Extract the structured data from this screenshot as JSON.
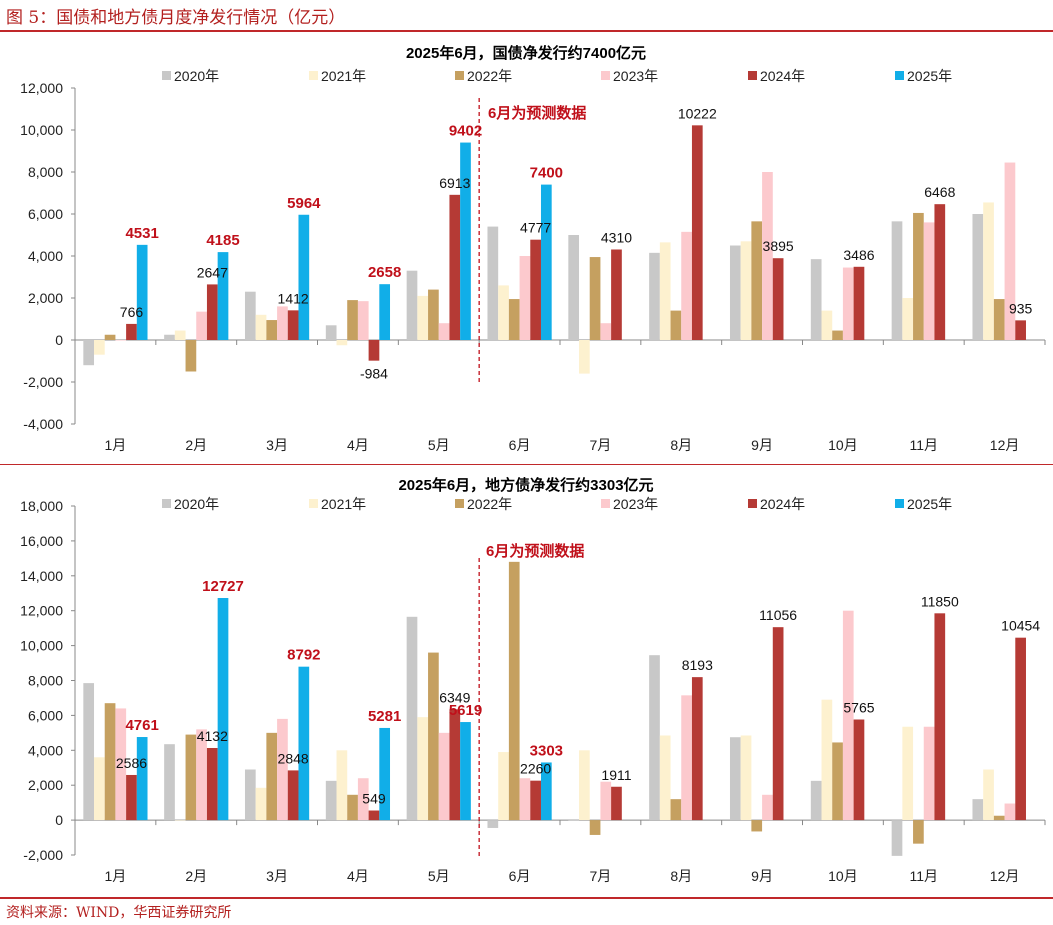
{
  "figure": {
    "title": "图 5：国债和地方债月度净发行情况（亿元）",
    "source": "资料来源：WIND，华西证券研究所"
  },
  "colors": {
    "2020年": "#c8c8c8",
    "2021年": "#fdf1cf",
    "2022年": "#c5a060",
    "2023年": "#fcc9cd",
    "2024年": "#b53a35",
    "2025年": "#11aee8",
    "highlight": "#c0101a",
    "dashed": "#c0101a"
  },
  "chart_data": [
    {
      "type": "bar",
      "title": "2025年6月，国债净发行约7400亿元",
      "annotation": "6月为预测数据",
      "categories": [
        "1月",
        "2月",
        "3月",
        "4月",
        "5月",
        "6月",
        "7月",
        "8月",
        "9月",
        "10月",
        "11月",
        "12月"
      ],
      "ylim": [
        -4000,
        12000
      ],
      "yticks": [
        -4000,
        -2000,
        0,
        2000,
        4000,
        6000,
        8000,
        10000,
        12000
      ],
      "ytick_labels": [
        "-4,000",
        "-2,000",
        "0",
        "2,000",
        "4,000",
        "6,000",
        "8,000",
        "10,000",
        "12,000"
      ],
      "legend_position": "top",
      "series": [
        {
          "name": "2020年",
          "values": [
            -1200,
            250,
            2300,
            700,
            3300,
            5400,
            5000,
            4150,
            4500,
            3850,
            5650,
            6000
          ]
        },
        {
          "name": "2021年",
          "values": [
            -700,
            450,
            1200,
            -250,
            2100,
            2600,
            -1600,
            4650,
            4700,
            1400,
            2000,
            6550
          ]
        },
        {
          "name": "2022年",
          "values": [
            250,
            -1500,
            950,
            1900,
            2400,
            1950,
            3950,
            1400,
            5650,
            450,
            6050,
            1950
          ]
        },
        {
          "name": "2023年",
          "values": [
            0,
            1350,
            1600,
            1850,
            800,
            4000,
            800,
            5150,
            8000,
            3450,
            5600,
            8450
          ]
        },
        {
          "name": "2024年",
          "values": [
            766,
            2647,
            1412,
            -984,
            6913,
            4777,
            4310,
            10222,
            3895,
            3486,
            6468,
            935
          ]
        },
        {
          "name": "2025年",
          "values": [
            4531,
            4185,
            5964,
            2658,
            9402,
            7400,
            null,
            null,
            null,
            null,
            null,
            null
          ]
        }
      ],
      "data_labels": [
        {
          "series": "2024年",
          "index": 0,
          "text": "766"
        },
        {
          "series": "2024年",
          "index": 1,
          "text": "2647"
        },
        {
          "series": "2024年",
          "index": 2,
          "text": "1412"
        },
        {
          "series": "2024年",
          "index": 3,
          "text": "-984"
        },
        {
          "series": "2024年",
          "index": 4,
          "text": "6913"
        },
        {
          "series": "2024年",
          "index": 5,
          "text": "4777"
        },
        {
          "series": "2024年",
          "index": 6,
          "text": "4310"
        },
        {
          "series": "2024年",
          "index": 7,
          "text": "10222"
        },
        {
          "series": "2024年",
          "index": 8,
          "text": "3895"
        },
        {
          "series": "2024年",
          "index": 9,
          "text": "3486"
        },
        {
          "series": "2024年",
          "index": 10,
          "text": "6468"
        },
        {
          "series": "2024年",
          "index": 11,
          "text": "935"
        },
        {
          "series": "2025年",
          "index": 0,
          "text": "4531",
          "highlight": true
        },
        {
          "series": "2025年",
          "index": 1,
          "text": "4185",
          "highlight": true
        },
        {
          "series": "2025年",
          "index": 2,
          "text": "5964",
          "highlight": true
        },
        {
          "series": "2025年",
          "index": 3,
          "text": "2658",
          "highlight": true
        },
        {
          "series": "2025年",
          "index": 4,
          "text": "9402",
          "highlight": true
        },
        {
          "series": "2025年",
          "index": 5,
          "text": "7400",
          "highlight": true
        }
      ]
    },
    {
      "type": "bar",
      "title": "2025年6月，地方债净发行约3303亿元",
      "annotation": "6月为预测数据",
      "categories": [
        "1月",
        "2月",
        "3月",
        "4月",
        "5月",
        "6月",
        "7月",
        "8月",
        "9月",
        "10月",
        "11月",
        "12月"
      ],
      "ylim": [
        -2000,
        18000
      ],
      "yticks": [
        -2000,
        0,
        2000,
        4000,
        6000,
        8000,
        10000,
        12000,
        14000,
        16000,
        18000
      ],
      "ytick_labels": [
        "-2,000",
        "0",
        "2,000",
        "4,000",
        "6,000",
        "8,000",
        "10,000",
        "12,000",
        "14,000",
        "16,000",
        "18,000"
      ],
      "legend_position": "top",
      "series": [
        {
          "name": "2020年",
          "values": [
            7850,
            4350,
            2900,
            2250,
            11650,
            -450,
            0,
            9450,
            4750,
            2250,
            -2050,
            1200
          ]
        },
        {
          "name": "2021年",
          "values": [
            3600,
            0,
            1850,
            4000,
            5900,
            3900,
            4000,
            4850,
            4850,
            6900,
            5350,
            2900
          ]
        },
        {
          "name": "2022年",
          "values": [
            6700,
            4900,
            5000,
            1450,
            9600,
            14800,
            -850,
            1200,
            -650,
            4450,
            -1350,
            250
          ]
        },
        {
          "name": "2023年",
          "values": [
            6400,
            5200,
            5800,
            2400,
            5000,
            2400,
            2200,
            7150,
            1450,
            12000,
            5350,
            950
          ]
        },
        {
          "name": "2024年",
          "values": [
            2586,
            4132,
            2848,
            549,
            6349,
            2260,
            1911,
            8193,
            11056,
            5765,
            11850,
            10454
          ]
        },
        {
          "name": "2025年",
          "values": [
            4761,
            12727,
            8792,
            5281,
            5619,
            3303,
            null,
            null,
            null,
            null,
            null,
            null
          ]
        }
      ],
      "data_labels": [
        {
          "series": "2024年",
          "index": 0,
          "text": "2586"
        },
        {
          "series": "2024年",
          "index": 1,
          "text": "4132"
        },
        {
          "series": "2024年",
          "index": 2,
          "text": "2848"
        },
        {
          "series": "2024年",
          "index": 3,
          "text": "549"
        },
        {
          "series": "2024年",
          "index": 4,
          "text": "6349"
        },
        {
          "series": "2024年",
          "index": 5,
          "text": "2260"
        },
        {
          "series": "2024年",
          "index": 6,
          "text": "1911"
        },
        {
          "series": "2024年",
          "index": 7,
          "text": "8193"
        },
        {
          "series": "2024年",
          "index": 8,
          "text": "11056"
        },
        {
          "series": "2024年",
          "index": 9,
          "text": "5765"
        },
        {
          "series": "2024年",
          "index": 10,
          "text": "11850"
        },
        {
          "series": "2024年",
          "index": 11,
          "text": "10454"
        },
        {
          "series": "2025年",
          "index": 0,
          "text": "4761",
          "highlight": true
        },
        {
          "series": "2025年",
          "index": 1,
          "text": "12727",
          "highlight": true
        },
        {
          "series": "2025年",
          "index": 2,
          "text": "8792",
          "highlight": true
        },
        {
          "series": "2025年",
          "index": 3,
          "text": "5281",
          "highlight": true
        },
        {
          "series": "2025年",
          "index": 4,
          "text": "5619",
          "highlight": true
        },
        {
          "series": "2025年",
          "index": 5,
          "text": "3303",
          "highlight": true
        }
      ]
    }
  ]
}
